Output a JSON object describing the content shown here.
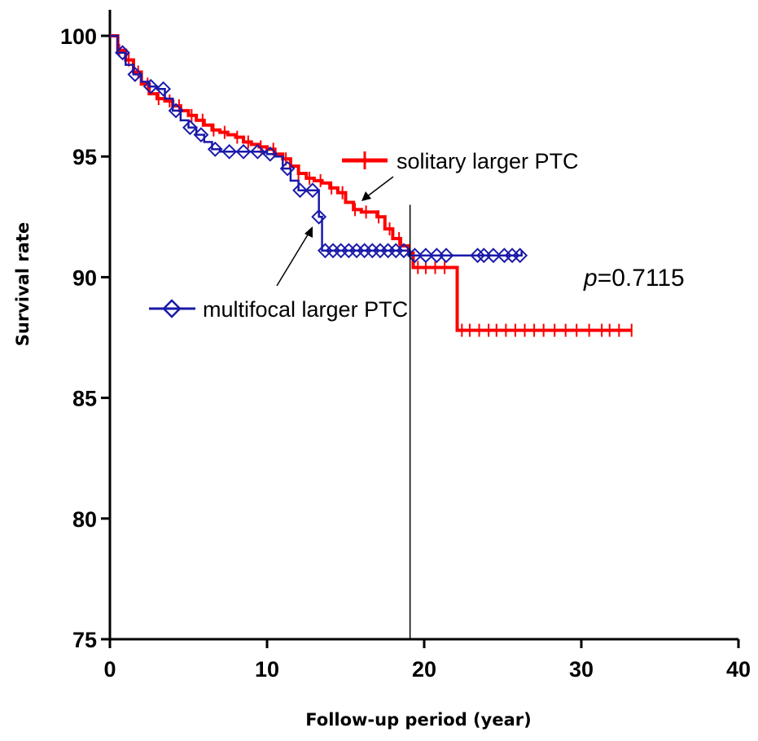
{
  "chart_data": {
    "type": "line",
    "xlabel": "Follow-up period (year)",
    "ylabel": "Survival rate",
    "xlim": [
      0,
      40
    ],
    "ylim": [
      75,
      100
    ],
    "xticks": [
      0,
      10,
      20,
      30,
      40
    ],
    "yticks": [
      75,
      80,
      85,
      90,
      95,
      100
    ],
    "annotation": {
      "p_label": "p",
      "p_value": "=0.7115"
    },
    "reference_line_x": 19.1,
    "series": [
      {
        "name": "solitary larger PTC",
        "color": "#ff0000",
        "marker": "plus",
        "points": [
          [
            0,
            100
          ],
          [
            0.5,
            99.4
          ],
          [
            1,
            99
          ],
          [
            1.5,
            98.5
          ],
          [
            2,
            98
          ],
          [
            2.5,
            97.6
          ],
          [
            3,
            97.4
          ],
          [
            3.5,
            97.3
          ],
          [
            4,
            97.1
          ],
          [
            4.5,
            96.9
          ],
          [
            5,
            96.7
          ],
          [
            5.5,
            96.5
          ],
          [
            6,
            96.3
          ],
          [
            6.5,
            96.1
          ],
          [
            7,
            96
          ],
          [
            7.5,
            95.9
          ],
          [
            8,
            95.8
          ],
          [
            8.5,
            95.6
          ],
          [
            9,
            95.5
          ],
          [
            9.5,
            95.4
          ],
          [
            10,
            95.3
          ],
          [
            10.5,
            95.1
          ],
          [
            11,
            94.9
          ],
          [
            11.5,
            94.6
          ],
          [
            12,
            94.3
          ],
          [
            12.5,
            94.1
          ],
          [
            13,
            94
          ],
          [
            13.5,
            93.9
          ],
          [
            14,
            93.7
          ],
          [
            14.5,
            93.5
          ],
          [
            15,
            93.1
          ],
          [
            15.5,
            92.8
          ],
          [
            16,
            92.7
          ],
          [
            16.5,
            92.7
          ],
          [
            17,
            92.5
          ],
          [
            17.5,
            92
          ],
          [
            18,
            91.6
          ],
          [
            18.5,
            91.3
          ],
          [
            19,
            91
          ],
          [
            19.3,
            90.4
          ],
          [
            20,
            90.4
          ],
          [
            21,
            90.4
          ],
          [
            21.6,
            90.4
          ],
          [
            22.1,
            87.8
          ],
          [
            23,
            87.8
          ],
          [
            25,
            87.8
          ],
          [
            28,
            87.8
          ],
          [
            31,
            87.8
          ],
          [
            33.2,
            87.8
          ]
        ],
        "censor_x": [
          0.6,
          1.2,
          1.8,
          2.4,
          3.1,
          3.8,
          4.4,
          5.2,
          5.9,
          6.6,
          7.3,
          8.1,
          8.8,
          9.6,
          10.4,
          11.2,
          12,
          12.7,
          13.4,
          14.1,
          14.8,
          15.6,
          16.3,
          17.1,
          17.8,
          18.4,
          19.6,
          20.1,
          20.7,
          21.3,
          22.4,
          22.9,
          23.5,
          24.1,
          24.6,
          25.2,
          25.8,
          26.4,
          27,
          27.6,
          28.3,
          29,
          29.7,
          30.5,
          31.3,
          31.8,
          32.4,
          33.2
        ]
      },
      {
        "name": "multifocal larger PTC",
        "color": "#1a1aaa",
        "marker": "diamond",
        "points": [
          [
            0,
            100
          ],
          [
            0.5,
            99.3
          ],
          [
            1,
            98.8
          ],
          [
            1.5,
            98.4
          ],
          [
            2,
            98.1
          ],
          [
            2.5,
            97.9
          ],
          [
            3,
            97.8
          ],
          [
            3.5,
            97.4
          ],
          [
            4,
            96.9
          ],
          [
            4.5,
            96.5
          ],
          [
            5,
            96.2
          ],
          [
            5.5,
            95.9
          ],
          [
            6,
            95.6
          ],
          [
            6.5,
            95.3
          ],
          [
            7,
            95.2
          ],
          [
            8,
            95.2
          ],
          [
            9,
            95.2
          ],
          [
            10,
            95.1
          ],
          [
            10.5,
            95
          ],
          [
            11,
            94.5
          ],
          [
            11.5,
            94
          ],
          [
            12,
            93.6
          ],
          [
            13,
            93.6
          ],
          [
            13.3,
            92.5
          ],
          [
            13.5,
            91.1
          ],
          [
            14,
            91.1
          ],
          [
            16,
            91.1
          ],
          [
            18,
            91.1
          ],
          [
            19,
            90.9
          ],
          [
            20,
            90.9
          ],
          [
            22,
            90.9
          ],
          [
            24,
            90.9
          ],
          [
            26.2,
            91.1
          ]
        ],
        "censor_x": [
          0.8,
          1.6,
          2.6,
          3.4,
          4.2,
          5.1,
          5.8,
          6.7,
          7.6,
          8.5,
          9.4,
          10.2,
          11.3,
          12.1,
          12.9,
          13.3,
          13.7,
          14.2,
          14.7,
          15.2,
          15.7,
          16.2,
          16.7,
          17.2,
          17.7,
          18.2,
          18.7,
          19.4,
          20.1,
          20.8,
          21.4,
          23.4,
          23.8,
          24.4,
          25.1,
          25.6,
          26.1
        ]
      }
    ],
    "legend": [
      {
        "label": "solitary larger PTC",
        "marker": "plus",
        "color": "#ff0000"
      },
      {
        "label": "multifocal larger PTC",
        "marker": "diamond",
        "color": "#1a1aaa"
      }
    ]
  }
}
